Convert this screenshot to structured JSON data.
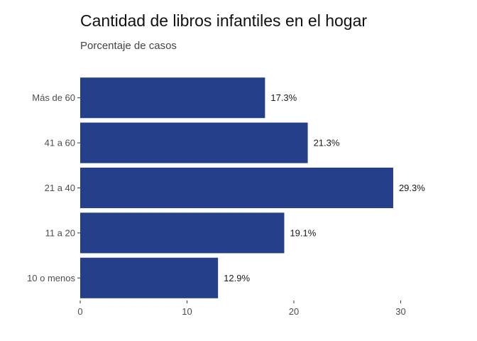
{
  "chart_data": {
    "type": "bar",
    "orientation": "horizontal",
    "title": "Cantidad de libros infantiles en el hogar",
    "subtitle": "Porcentaje de casos",
    "categories": [
      "10 o menos",
      "11 a 20",
      "21 a 40",
      "41 a 60",
      "Más de 60"
    ],
    "values": [
      12.9,
      19.1,
      29.3,
      21.3,
      17.3
    ],
    "data_labels": [
      "12.9%",
      "19.1%",
      "29.3%",
      "21.3%",
      "17.3%"
    ],
    "x_ticks": [
      0,
      10,
      20,
      30
    ],
    "xlim": [
      0,
      32
    ],
    "bar_color": "#253F8A",
    "grid": false,
    "legend": "none"
  }
}
